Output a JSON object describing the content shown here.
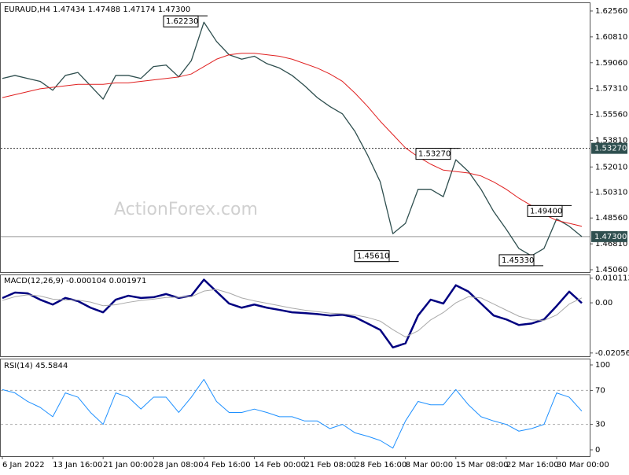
{
  "chart_data": [
    {
      "type": "line",
      "title": "EURAUD,H4 1.47434 1.47488 1.47174 1.47300",
      "watermark": "ActionForex.com",
      "categories": [
        "6 Jan 2022",
        null,
        null,
        null,
        "13 Jan 16:00",
        null,
        null,
        null,
        "21 Jan 00:00",
        null,
        null,
        null,
        "28 Jan 08:00",
        null,
        null,
        null,
        "4 Feb 16:00",
        null,
        null,
        null,
        "14 Feb 00:00",
        null,
        null,
        null,
        "21 Feb 08:00",
        null,
        null,
        null,
        "28 Feb 16:00",
        null,
        null,
        null,
        "8 Mar 00:00",
        null,
        null,
        null,
        "15 Mar 08:00",
        null,
        null,
        null,
        "22 Mar 16:00",
        null,
        null,
        null,
        "30 Mar 00:00",
        null,
        null
      ],
      "series": [
        {
          "name": "EURAUD",
          "color": "#2f4f4f",
          "width": 1.3,
          "values": [
            1.58,
            1.582,
            1.58,
            1.578,
            1.572,
            1.582,
            1.584,
            1.575,
            1.566,
            1.582,
            1.582,
            1.58,
            1.588,
            1.589,
            1.581,
            1.592,
            1.618,
            1.605,
            1.596,
            1.593,
            1.595,
            1.59,
            1.587,
            1.582,
            1.575,
            1.567,
            1.561,
            1.556,
            1.544,
            1.528,
            1.51,
            1.475,
            1.482,
            1.505,
            1.505,
            1.5,
            1.525,
            1.517,
            1.505,
            1.49,
            1.478,
            1.465,
            1.46,
            1.465,
            1.485,
            1.48,
            1.473
          ]
        },
        {
          "name": "MA",
          "color": "#e02020",
          "width": 1,
          "values": [
            1.567,
            1.569,
            1.571,
            1.573,
            1.574,
            1.575,
            1.576,
            1.576,
            1.576,
            1.577,
            1.577,
            1.578,
            1.579,
            1.58,
            1.581,
            1.583,
            1.588,
            1.593,
            1.596,
            1.597,
            1.597,
            1.596,
            1.595,
            1.593,
            1.59,
            1.587,
            1.583,
            1.578,
            1.57,
            1.561,
            1.551,
            1.542,
            1.533,
            1.527,
            1.522,
            1.518,
            1.517,
            1.516,
            1.514,
            1.51,
            1.505,
            1.499,
            1.494,
            1.488,
            1.484,
            1.482,
            1.48
          ]
        }
      ],
      "ylim": [
        1.449,
        1.6309
      ],
      "yticks": [
        {
          "value": 1.6256,
          "label": "1.62560"
        },
        {
          "value": 1.6081,
          "label": "1.60810"
        },
        {
          "value": 1.5906,
          "label": "1.59060"
        },
        {
          "value": 1.5731,
          "label": "1.57310"
        },
        {
          "value": 1.5556,
          "label": "1.55560"
        },
        {
          "value": 1.5381,
          "label": "1.53810"
        },
        {
          "value": 1.5201,
          "label": "1.52010"
        },
        {
          "value": 1.5031,
          "label": "1.50310"
        },
        {
          "value": 1.4856,
          "label": "1.48560"
        },
        {
          "value": 1.4681,
          "label": "1.46810"
        },
        {
          "value": 1.4506,
          "label": "1.45060"
        }
      ],
      "annotations": [
        {
          "value": 1.6223,
          "label": "1.62230"
        },
        {
          "value": 1.5327,
          "label": "1.53270"
        },
        {
          "value": 1.4561,
          "label": "1.45610"
        },
        {
          "value": 1.4533,
          "label": "1.45330"
        },
        {
          "value": 1.494,
          "label": "1.49400"
        }
      ],
      "hlines": [
        {
          "value": 1.5327,
          "label": "1.53270",
          "dash": true
        },
        {
          "value": 1.473,
          "label": "1.47300",
          "dash": false
        }
      ]
    },
    {
      "type": "line",
      "title": "MACD(12,26,9) -0.000104 0.001971",
      "series": [
        {
          "name": "MACD",
          "color": "#000080",
          "width": 2.5,
          "values": [
            0.00196,
            0.0042,
            0.0039,
            0.0013,
            -0.0007,
            0.002,
            0.0007,
            -0.002,
            -0.0039,
            0.0013,
            0.0029,
            0.002,
            0.0023,
            0.0036,
            0.002,
            0.0029,
            0.0095,
            0.0046,
            -0.0003,
            -0.002,
            -0.0007,
            -0.002,
            -0.0029,
            -0.0039,
            -0.0042,
            -0.0046,
            -0.0052,
            -0.0049,
            -0.0059,
            -0.0085,
            -0.0111,
            -0.0183,
            -0.0166,
            -0.0052,
            0.0013,
            -0.0003,
            0.0072,
            0.0046,
            -0.0003,
            -0.0052,
            -0.0068,
            -0.0091,
            -0.0085,
            -0.0068,
            -0.0013,
            0.0046,
            -0.0001
          ]
        },
        {
          "name": "Signal",
          "color": "#a9a9a9",
          "width": 1,
          "values": [
            0.001,
            0.0025,
            0.0033,
            0.0028,
            0.0015,
            0.0012,
            0.0011,
            0.0003,
            -0.0012,
            -0.0008,
            0.0002,
            0.001,
            0.0015,
            0.0022,
            0.0023,
            0.0025,
            0.0048,
            0.0055,
            0.004,
            0.002,
            0.0008,
            -0.0002,
            -0.0012,
            -0.0022,
            -0.003,
            -0.0036,
            -0.0042,
            -0.0045,
            -0.005,
            -0.006,
            -0.0075,
            -0.011,
            -0.014,
            -0.0115,
            -0.007,
            -0.004,
            0.0,
            0.0025,
            0.002,
            -0.0005,
            -0.003,
            -0.0055,
            -0.007,
            -0.0072,
            -0.005,
            -0.0005,
            0.002
          ]
        }
      ],
      "ylim": [
        -0.0219,
        0.0113
      ],
      "yticks": [
        0.010113,
        {
          "value": 0,
          "label": "0.00"
        },
        -0.020561
      ]
    },
    {
      "type": "line",
      "title": "RSI(14) 45.5844",
      "series": [
        {
          "name": "RSI",
          "color": "#1e90ff",
          "width": 1,
          "values": [
            71,
            67,
            57,
            50,
            39,
            67,
            62,
            44,
            30,
            67,
            62,
            48,
            62,
            62,
            44,
            62,
            83,
            57,
            44,
            44,
            48,
            44,
            39,
            39,
            34,
            34,
            25,
            30,
            20,
            16,
            11,
            2,
            34,
            57,
            53,
            53,
            71,
            53,
            39,
            34,
            30,
            22,
            25,
            30,
            67,
            62,
            45.5844
          ]
        }
      ],
      "ylim": [
        -7.4,
        106.5
      ],
      "yticks": [
        0,
        30,
        70,
        100
      ],
      "levels": [
        70,
        30
      ]
    }
  ]
}
